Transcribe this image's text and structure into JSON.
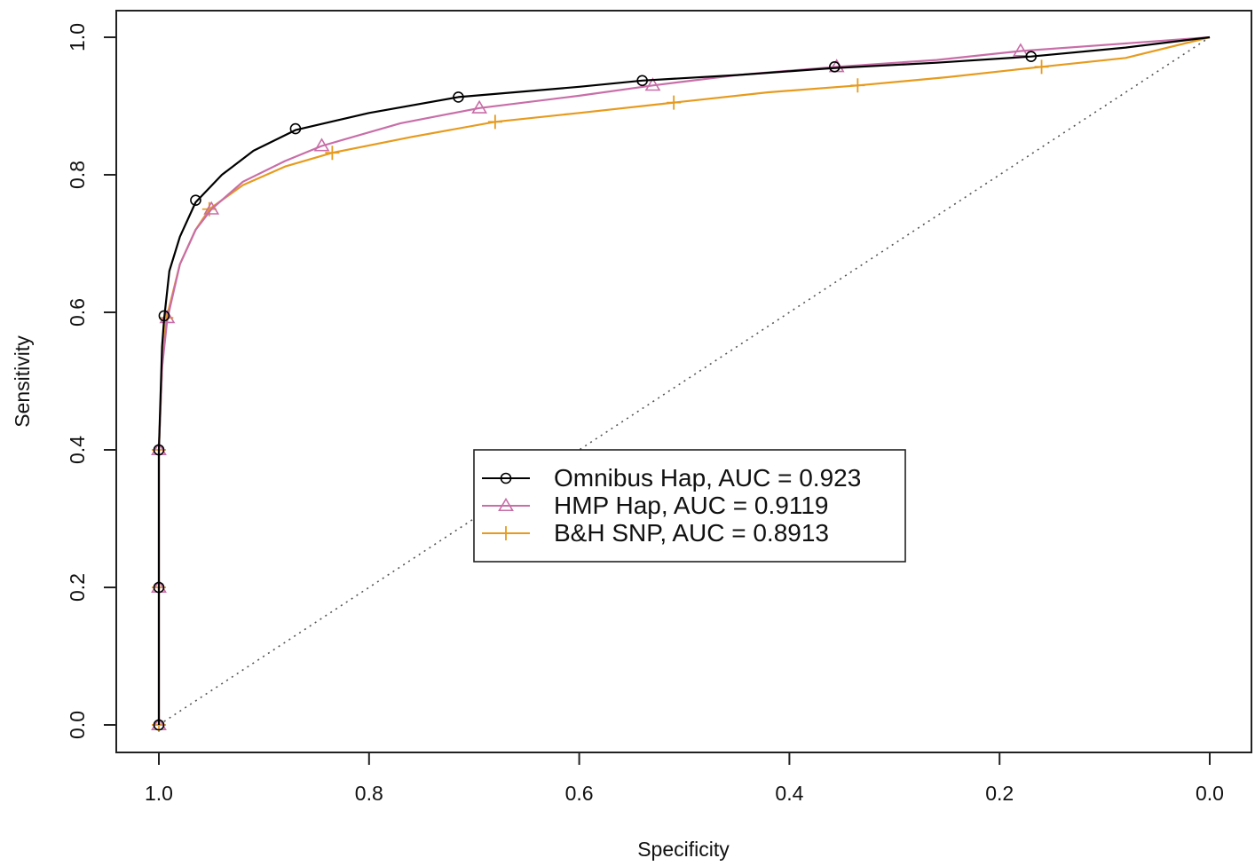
{
  "chart_data": {
    "type": "line",
    "title": "",
    "xlabel": "Specificity",
    "ylabel": "Sensitivity",
    "xlim": [
      1.0,
      0.0
    ],
    "ylim": [
      0.0,
      1.0
    ],
    "x_reversed": true,
    "x_ticks": [
      "1.0",
      "0.8",
      "0.6",
      "0.4",
      "0.2",
      "0.0"
    ],
    "y_ticks": [
      "0.0",
      "0.2",
      "0.4",
      "0.6",
      "0.8",
      "1.0"
    ],
    "grid": false,
    "legend_position": "center",
    "reference_line": {
      "style": "dotted",
      "color": "#555555",
      "points": [
        [
          1.0,
          0.0
        ],
        [
          0.0,
          1.0
        ]
      ]
    },
    "series": [
      {
        "name": "Omnibus Hap, AUC = 0.923",
        "color": "#000000",
        "marker": "circle",
        "points": [
          [
            1.0,
            0.0
          ],
          [
            1.0,
            0.2
          ],
          [
            1.0,
            0.4
          ],
          [
            0.997,
            0.55
          ],
          [
            0.995,
            0.59
          ],
          [
            0.99,
            0.66
          ],
          [
            0.98,
            0.71
          ],
          [
            0.965,
            0.76
          ],
          [
            0.94,
            0.8
          ],
          [
            0.91,
            0.835
          ],
          [
            0.87,
            0.865
          ],
          [
            0.8,
            0.89
          ],
          [
            0.715,
            0.913
          ],
          [
            0.6,
            0.928
          ],
          [
            0.54,
            0.937
          ],
          [
            0.45,
            0.945
          ],
          [
            0.36,
            0.955
          ],
          [
            0.26,
            0.963
          ],
          [
            0.17,
            0.972
          ],
          [
            0.08,
            0.985
          ],
          [
            0.0,
            1.0
          ]
        ],
        "marker_points": [
          [
            1.0,
            0.0
          ],
          [
            1.0,
            0.2
          ],
          [
            1.0,
            0.4
          ],
          [
            0.995,
            0.595
          ],
          [
            0.965,
            0.763
          ],
          [
            0.87,
            0.867
          ],
          [
            0.715,
            0.913
          ],
          [
            0.54,
            0.937
          ],
          [
            0.357,
            0.957
          ],
          [
            0.17,
            0.972
          ]
        ]
      },
      {
        "name": "HMP Hap, AUC = 0.9119",
        "color": "#c86ea8",
        "marker": "triangle",
        "points": [
          [
            1.0,
            0.0
          ],
          [
            1.0,
            0.2
          ],
          [
            1.0,
            0.4
          ],
          [
            0.997,
            0.52
          ],
          [
            0.992,
            0.59
          ],
          [
            0.98,
            0.67
          ],
          [
            0.965,
            0.72
          ],
          [
            0.95,
            0.75
          ],
          [
            0.92,
            0.79
          ],
          [
            0.88,
            0.82
          ],
          [
            0.845,
            0.842
          ],
          [
            0.77,
            0.875
          ],
          [
            0.695,
            0.897
          ],
          [
            0.6,
            0.915
          ],
          [
            0.53,
            0.93
          ],
          [
            0.45,
            0.945
          ],
          [
            0.355,
            0.957
          ],
          [
            0.26,
            0.967
          ],
          [
            0.18,
            0.98
          ],
          [
            0.09,
            0.99
          ],
          [
            0.0,
            1.0
          ]
        ],
        "marker_points": [
          [
            1.0,
            0.0
          ],
          [
            1.0,
            0.2
          ],
          [
            1.0,
            0.4
          ],
          [
            0.992,
            0.592
          ],
          [
            0.95,
            0.75
          ],
          [
            0.845,
            0.842
          ],
          [
            0.695,
            0.897
          ],
          [
            0.53,
            0.93
          ],
          [
            0.355,
            0.957
          ],
          [
            0.18,
            0.98
          ]
        ]
      },
      {
        "name": "B&H SNP, AUC = 0.8913",
        "color": "#e69b1e",
        "marker": "plus",
        "points": [
          [
            1.0,
            0.0
          ],
          [
            1.0,
            0.2
          ],
          [
            1.0,
            0.4
          ],
          [
            0.997,
            0.52
          ],
          [
            0.993,
            0.59
          ],
          [
            0.98,
            0.67
          ],
          [
            0.965,
            0.72
          ],
          [
            0.952,
            0.75
          ],
          [
            0.92,
            0.785
          ],
          [
            0.88,
            0.812
          ],
          [
            0.835,
            0.832
          ],
          [
            0.76,
            0.855
          ],
          [
            0.68,
            0.877
          ],
          [
            0.6,
            0.89
          ],
          [
            0.51,
            0.905
          ],
          [
            0.42,
            0.92
          ],
          [
            0.335,
            0.93
          ],
          [
            0.25,
            0.942
          ],
          [
            0.16,
            0.957
          ],
          [
            0.08,
            0.97
          ],
          [
            0.0,
            1.0
          ]
        ],
        "marker_points": [
          [
            1.0,
            0.0
          ],
          [
            1.0,
            0.2
          ],
          [
            1.0,
            0.4
          ],
          [
            0.993,
            0.592
          ],
          [
            0.952,
            0.75
          ],
          [
            0.835,
            0.832
          ],
          [
            0.68,
            0.877
          ],
          [
            0.51,
            0.905
          ],
          [
            0.335,
            0.93
          ],
          [
            0.16,
            0.957
          ]
        ]
      }
    ]
  }
}
